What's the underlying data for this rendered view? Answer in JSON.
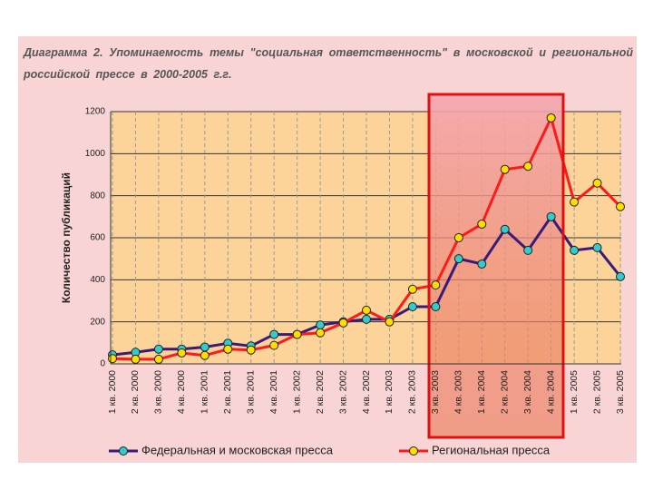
{
  "chart_data": {
    "type": "line",
    "title": "Диаграмма 2. Упоминаемость темы \"социальная ответственность\" в московской и региональной российской прессе в 2000-2005 г.г.",
    "y_label": "Количество публикаций",
    "categories": [
      "1 кв. 2000",
      "2 кв. 2000",
      "3 кв. 2000",
      "4 кв. 2000",
      "1 кв. 2001",
      "2 кв. 2001",
      "3 кв. 2001",
      "4 кв. 2001",
      "1 кв. 2002",
      "2 кв. 2002",
      "3 кв. 2002",
      "4 кв. 2002",
      "1 кв. 2003",
      "2 кв. 2003",
      "3 кв. 2003",
      "4 кв. 2003",
      "1 кв. 2004",
      "2 кв. 2004",
      "3 кв. 2004",
      "4 кв. 2004",
      "1 кв. 2005",
      "2 кв. 2005",
      "3 кв. 2005"
    ],
    "series": [
      {
        "name": "Федеральная и московская пресса",
        "color": "#3a1a7a",
        "marker_color": "#33cccc",
        "values": [
          43,
          55,
          70,
          70,
          80,
          98,
          85,
          140,
          140,
          185,
          200,
          212,
          212,
          272,
          272,
          500,
          475,
          640,
          540,
          700,
          540,
          553,
          415
        ]
      },
      {
        "name": "Региональная пресса",
        "color": "#ff1a1a",
        "marker_color": "#ffdd00",
        "values": [
          25,
          22,
          22,
          52,
          40,
          70,
          66,
          88,
          140,
          148,
          195,
          255,
          200,
          355,
          375,
          600,
          665,
          925,
          940,
          1170,
          770,
          860,
          748
        ]
      }
    ],
    "ylim": [
      0,
      1200
    ],
    "yticks": [
      0,
      200,
      400,
      600,
      800,
      1000,
      1200
    ],
    "grid": true,
    "legend": "bottom"
  }
}
